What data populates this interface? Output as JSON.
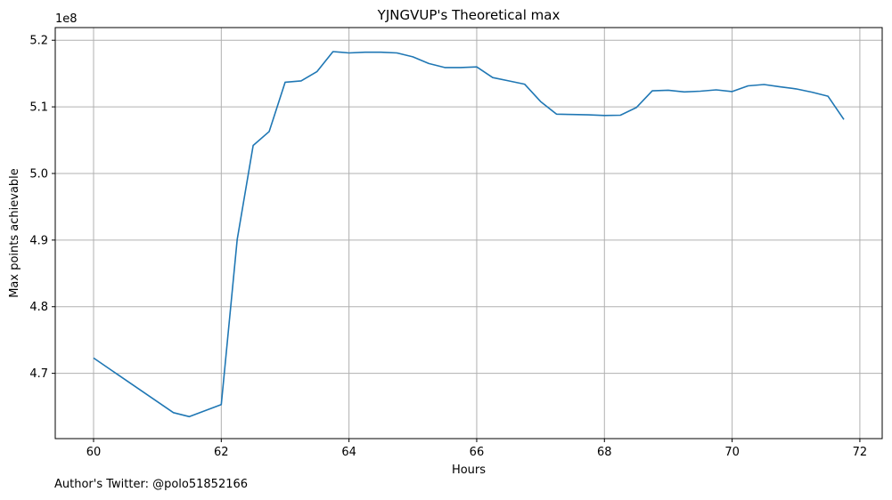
{
  "chart_data": {
    "type": "line",
    "title": "YJNGVUP's Theoretical max",
    "xlabel": "Hours",
    "ylabel": "Max points achievable",
    "y_offset_label": "1e8",
    "xlim": [
      59.4,
      72.35
    ],
    "ylim": [
      460.2,
      521.9
    ],
    "xticks": [
      60,
      62,
      64,
      66,
      68,
      70,
      72
    ],
    "yticks": [
      470,
      480,
      490,
      500,
      510,
      520
    ],
    "ytick_labels": [
      "4.7",
      "4.8",
      "4.9",
      "5.0",
      "5.1",
      "5.2"
    ],
    "grid": true,
    "series": [
      {
        "color": "#1f77b4",
        "x": [
          60.0,
          61.25,
          61.5,
          62.0,
          62.25,
          62.5,
          62.75,
          63.0,
          63.25,
          63.5,
          63.75,
          64.0,
          64.25,
          64.5,
          64.75,
          65.0,
          65.25,
          65.5,
          65.75,
          66.0,
          66.25,
          66.5,
          66.75,
          67.0,
          67.25,
          67.5,
          67.75,
          68.0,
          68.25,
          68.5,
          68.75,
          69.0,
          69.25,
          69.5,
          69.75,
          70.0,
          70.25,
          70.5,
          70.75,
          71.0,
          71.25,
          71.5,
          71.75
        ],
        "y": [
          472.3,
          464.1,
          463.5,
          465.3,
          490.1,
          504.2,
          506.3,
          513.7,
          513.9,
          515.3,
          518.3,
          518.1,
          518.2,
          518.2,
          518.1,
          517.5,
          516.5,
          515.9,
          515.9,
          516.0,
          514.4,
          513.9,
          513.4,
          510.8,
          508.9,
          508.85,
          508.8,
          508.7,
          508.75,
          509.9,
          512.4,
          512.5,
          512.25,
          512.35,
          512.55,
          512.3,
          513.15,
          513.35,
          513.0,
          512.7,
          512.2,
          511.6,
          508.1
        ]
      }
    ],
    "annotation": "Author's Twitter: @polo51852166"
  }
}
